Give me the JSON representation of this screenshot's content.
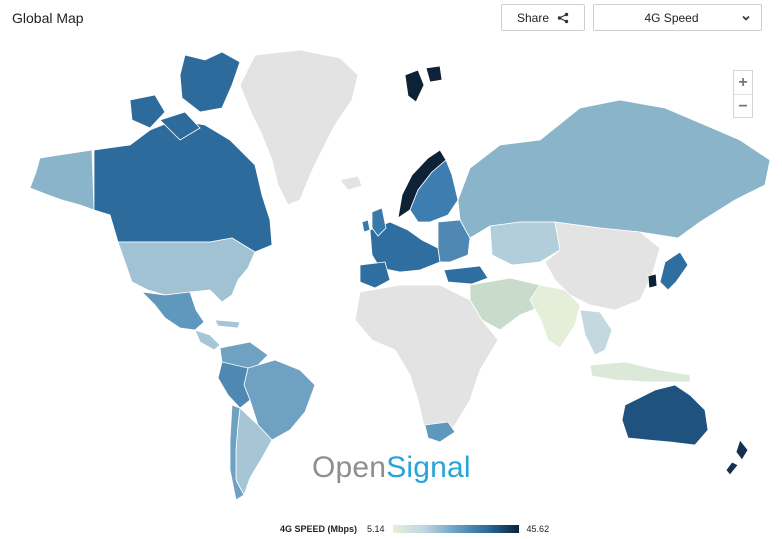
{
  "header": {
    "title": "Global Map",
    "share_label": "Share",
    "metric_selected": "4G Speed"
  },
  "zoom": {
    "in_label": "+",
    "out_label": "−"
  },
  "logo": {
    "part1": "Open",
    "part2": "Signal"
  },
  "legend": {
    "label": "4G SPEED (Mbps)",
    "min": "5.14",
    "max": "45.62"
  },
  "colors": {
    "no_data": "#e3e3e3",
    "low": "#e8efda",
    "mid_low": "#bed6df",
    "mid": "#6aa0c4",
    "mid_high": "#2a6a9e",
    "high": "#0d2236",
    "logo_grey": "#8f8f8f",
    "logo_blue": "#27a4d8"
  }
}
